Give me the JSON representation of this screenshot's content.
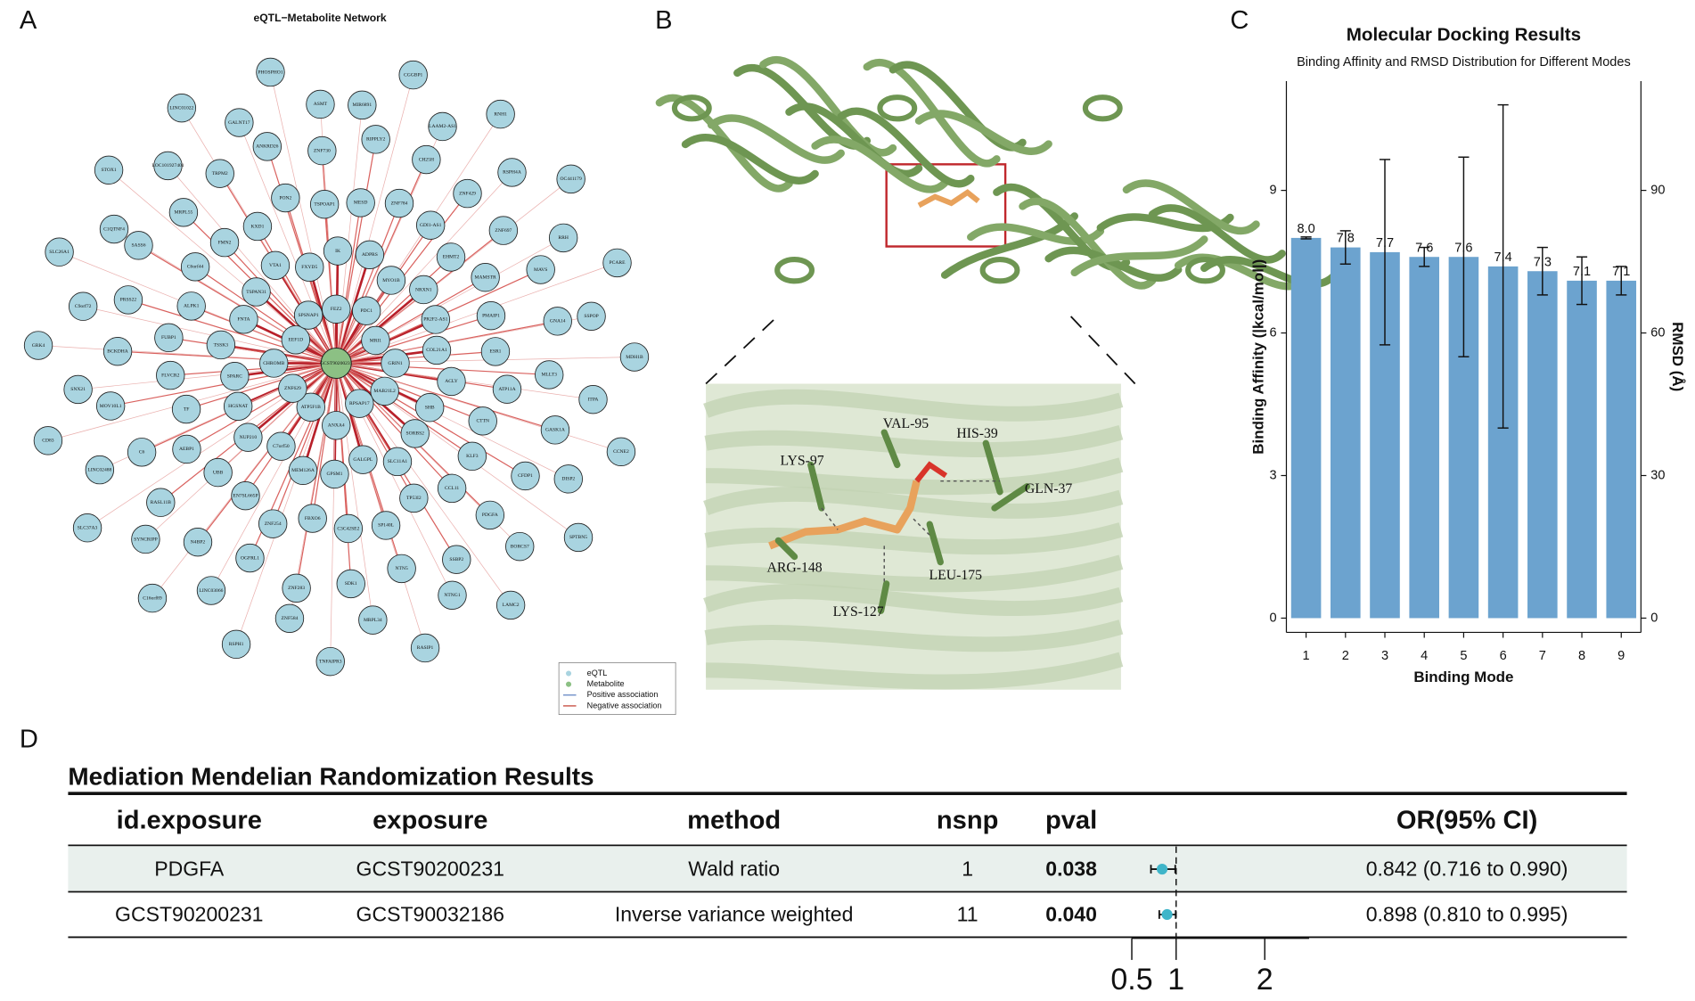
{
  "figure": {
    "panel_labels": [
      "A",
      "B",
      "C",
      "D"
    ]
  },
  "structure_panel": {
    "residues": [
      "VAL-95",
      "HIS-39",
      "LYS-97",
      "GLN-37",
      "ARG-148",
      "LEU-175",
      "LYS-127"
    ]
  },
  "chart_data": [
    {
      "type": "network",
      "title": "eQTL−Metabolite Network",
      "center": "GCST90200231",
      "nodes": [
        "FEZ2",
        "PDC1",
        "MRI1",
        "GRIN1",
        "MAB21L2",
        "RPSAP17",
        "ANXA4",
        "ATP5F1B",
        "ZNF629",
        "CHROMB",
        "EEF1D",
        "SPSNAP1",
        "ADPRS",
        "MYO1B",
        "NRXN1",
        "PR2F2-AS1",
        "COL21A1",
        "ACLY",
        "SHB",
        "SORBS2",
        "SLC11A1",
        "GALGPL",
        "GPSM1",
        "MEM126A",
        "C7orf50",
        "NUP210",
        "HGSNAT",
        "SPARC",
        "TSSK3",
        "FNTA",
        "TSPAN31",
        "VTA1",
        "FXYD5",
        "IK",
        "GDI1-AS1",
        "EHMT2",
        "MAMSTR",
        "PMAIP1",
        "ESR1",
        "ATP11A",
        "CTTN",
        "KLF3",
        "CCL11",
        "TP53I2",
        "SP140L",
        "C3C42SE2",
        "FBXO6",
        "ZNF254",
        "EN7SL665P",
        "UBB",
        "AEBP1",
        "TF",
        "FLVCR2",
        "FUBP1",
        "ALPK1",
        "C6orf44",
        "FMN2",
        "KXD1",
        "PON2",
        "TSPOAP1",
        "MESD",
        "ZNF784",
        "ZNF697",
        "MAVS",
        "GNA14",
        "MLLT3",
        "GASK1A",
        "CFDP1",
        "PDGFA",
        "SSBP2",
        "NTN5",
        "SDK1",
        "ZNF283",
        "OGFRL1",
        "N4BP2",
        "RASL11B",
        "C6",
        "MOV10L1",
        "BCKDHA",
        "PRSS22",
        "SASS6",
        "MRPL55",
        "TRPM2",
        "ANKRD26",
        "ZNF730",
        "RIPPLY2",
        "CH25H",
        "ZNF429",
        "MIR6891",
        "CGGBP1",
        "LAAM2-AS1",
        "RNH1",
        "RSPH4A",
        "OC441179",
        "RRH",
        "PCARE",
        "SSPOP",
        "MDH1B",
        "ITPA",
        "CCNE2",
        "DISP2",
        "SPTBN5",
        "BORCS7",
        "LAMC2",
        "NTNG1",
        "RASIP1",
        "MRPL34",
        "TNFAIPR3",
        "ZNF584",
        "RSPH1",
        "LINC03066",
        "C16orf89",
        "SYNCRIPP",
        "SLC37A3",
        "LINC02488",
        "CD83",
        "SNX21",
        "GRK4",
        "C9orf72",
        "SLC26A1",
        "C1QTNF4",
        "STOX1",
        "LOC101927401",
        "LINC01022",
        "GALNT17",
        "PHOSPHO1",
        "ASMT"
      ],
      "legend": [
        {
          "name": "eQTL",
          "color": "#a9d4e0"
        },
        {
          "name": "Metabolite",
          "color": "#8cc084"
        },
        {
          "name": "Positive association",
          "color": "#5a7fc0"
        },
        {
          "name": "Negative association",
          "color": "#c0392b"
        }
      ]
    },
    {
      "type": "bar",
      "title": "Molecular Docking Results",
      "subtitle": "Binding Affinity and RMSD Distribution for Different Modes",
      "x_label": "Binding Mode",
      "y_label": "Binding Affinity (|kcal/mol|)",
      "y2_label": "RMSD (Å)",
      "categories": [
        "1",
        "2",
        "3",
        "4",
        "5",
        "6",
        "7",
        "8",
        "9"
      ],
      "values": [
        8.0,
        7.8,
        7.7,
        7.6,
        7.6,
        7.4,
        7.3,
        7.1,
        7.1
      ],
      "value_labels": [
        "8.0",
        "7.8",
        "7.7",
        "7.6",
        "7.6",
        "7.4",
        "7.3",
        "7.1",
        "7.1"
      ],
      "errors": [
        0.02,
        0.35,
        1.95,
        0.2,
        2.1,
        3.4,
        0.5,
        0.5,
        0.3
      ],
      "color": "#6ca3cf",
      "ylim": [
        -0.3,
        11.3
      ],
      "yticks": [
        0,
        3,
        6,
        9
      ],
      "y2lim": [
        -3,
        113
      ],
      "y2ticks": [
        0,
        30,
        60,
        90
      ]
    },
    {
      "type": "forest",
      "title": "Mediation Mendelian Randomization Results",
      "columns": [
        "id.exposure",
        "exposure",
        "method",
        "nsnp",
        "pval",
        "OR(95% CI)"
      ],
      "rows": [
        [
          "PDGFA",
          "GCST90200231",
          "Wald ratio",
          1,
          "0.038",
          "0.842 (0.716 to 0.990)"
        ],
        [
          "GCST90200231",
          "GCST90032186",
          "Inverse variance weighted",
          11,
          "0.040",
          "0.898 (0.810 to 0.995)"
        ]
      ],
      "or": [
        0.842,
        0.898
      ],
      "lower": [
        0.716,
        0.81
      ],
      "upper": [
        0.99,
        0.995
      ],
      "ref_line": 1,
      "xlim": [
        0.5,
        2.5
      ],
      "xticks": [
        0.5,
        1,
        2
      ],
      "color": "#3fb5c9"
    }
  ]
}
